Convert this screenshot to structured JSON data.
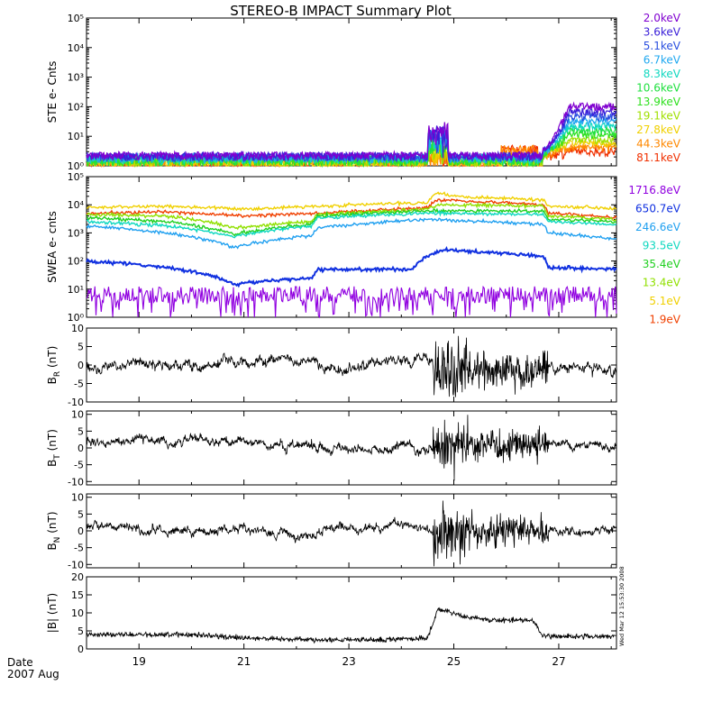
{
  "title": "STEREO-B IMPACT Summary Plot",
  "timestamp": "Wed Mar 12 15:53:30 2008",
  "date_label": "Date",
  "month_label": "2007 Aug",
  "x_ticks": [
    "19",
    "21",
    "23",
    "25",
    "27"
  ],
  "chart_data": [
    {
      "type": "line",
      "ylabel": "STE e- Cnts",
      "yscale": "log",
      "ylim": [
        1,
        100000
      ],
      "yticks": [
        1,
        10,
        100,
        1000,
        10000,
        100000
      ],
      "xlim": [
        18,
        28.1
      ],
      "legend_placement": "right",
      "series": [
        {
          "name": "2.0keV",
          "color": "#8000d0"
        },
        {
          "name": "3.6keV",
          "color": "#3a1fd8"
        },
        {
          "name": "5.1keV",
          "color": "#2a4fe0"
        },
        {
          "name": "6.7keV",
          "color": "#20a8f0"
        },
        {
          "name": "8.3keV",
          "color": "#10d8c0"
        },
        {
          "name": "10.6keV",
          "color": "#20e040"
        },
        {
          "name": "13.9keV",
          "color": "#30e020"
        },
        {
          "name": "19.1keV",
          "color": "#a0e000"
        },
        {
          "name": "27.8keV",
          "color": "#f0d000"
        },
        {
          "name": "44.3keV",
          "color": "#ff8800"
        },
        {
          "name": "81.1keV",
          "color": "#f03000"
        }
      ]
    },
    {
      "type": "line",
      "ylabel": "SWEA e- cnts",
      "yscale": "log",
      "ylim": [
        1,
        100000
      ],
      "yticks": [
        1,
        10,
        100,
        1000,
        10000,
        100000
      ],
      "xlim": [
        18,
        28.1
      ],
      "legend_placement": "right",
      "series": [
        {
          "name": "1716.8eV",
          "color": "#9000e0"
        },
        {
          "name": "650.7eV",
          "color": "#1030e0"
        },
        {
          "name": "246.6eV",
          "color": "#20a0f0"
        },
        {
          "name": "93.5eV",
          "color": "#10d8c0"
        },
        {
          "name": "35.4eV",
          "color": "#20d020"
        },
        {
          "name": "13.4eV",
          "color": "#90e000"
        },
        {
          "name": "5.1eV",
          "color": "#f0d000"
        },
        {
          "name": "1.9eV",
          "color": "#f04000"
        }
      ]
    },
    {
      "type": "line",
      "ylabel_main": "B",
      "ylabel_sub": "R",
      "ylabel_unit": "(nT)",
      "ylim": [
        -10,
        10
      ],
      "yticks": [
        -10,
        -5,
        0,
        5,
        10
      ],
      "xlim": [
        18,
        28.1
      ]
    },
    {
      "type": "line",
      "ylabel_main": "B",
      "ylabel_sub": "T",
      "ylabel_unit": "(nT)",
      "ylim": [
        -11,
        11
      ],
      "yticks": [
        -10,
        -5,
        0,
        5,
        10
      ],
      "xlim": [
        18,
        28.1
      ]
    },
    {
      "type": "line",
      "ylabel_main": "B",
      "ylabel_sub": "N",
      "ylabel_unit": "(nT)",
      "ylim": [
        -11,
        11
      ],
      "yticks": [
        -10,
        -5,
        0,
        5,
        10
      ],
      "xlim": [
        18,
        28.1
      ]
    },
    {
      "type": "line",
      "ylabel": "|B| (nT)",
      "ylim": [
        0,
        20
      ],
      "yticks": [
        0,
        5,
        10,
        15,
        20
      ],
      "xlim": [
        18,
        28.1
      ]
    }
  ]
}
